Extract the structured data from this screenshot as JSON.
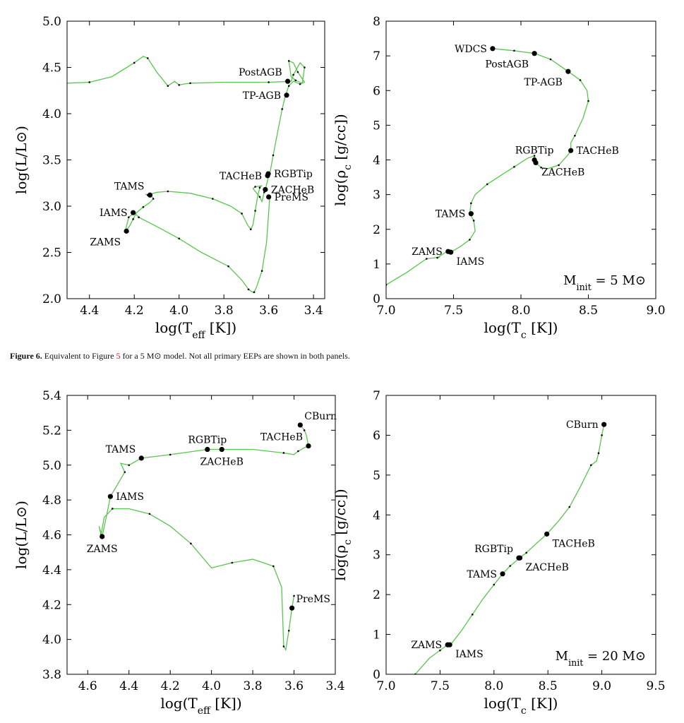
{
  "caption": {
    "figure_label": "Figure 6.",
    "text_before_ref": "Equivalent to Figure",
    "ref": "5",
    "text_after_ref": "for a 5 M⊙ model. Not all primary EEPs are shown in both panels."
  },
  "colors": {
    "track": "#59c64d",
    "point": "#000000",
    "axes": "#000000",
    "caption_ref": "#c8201e"
  },
  "chart_data": [
    {
      "id": "hr5",
      "type": "line",
      "xlabel": "log(T_eff [K])",
      "ylabel": "log(L/L⊙)",
      "xlim": [
        4.5,
        3.35
      ],
      "ylim": [
        2.0,
        5.0
      ],
      "xticks": [
        4.4,
        4.2,
        4.0,
        3.8,
        3.6,
        3.4
      ],
      "yticks": [
        2.0,
        2.5,
        3.0,
        3.5,
        4.0,
        4.5,
        5.0
      ],
      "x_tick_labels": [
        "4.4",
        "4.2",
        "4.0",
        "3.8",
        "3.6",
        "3.4"
      ],
      "y_tick_labels": [
        "2.0",
        "2.5",
        "3.0",
        "3.5",
        "4.0",
        "4.5",
        "5.0"
      ],
      "annotation": "",
      "track": [
        [
          3.595,
          3.1
        ],
        [
          3.61,
          2.6
        ],
        [
          3.63,
          2.3
        ],
        [
          3.655,
          2.12
        ],
        [
          3.665,
          2.07
        ],
        [
          3.672,
          2.07
        ],
        [
          3.69,
          2.1
        ],
        [
          3.72,
          2.2
        ],
        [
          3.78,
          2.35
        ],
        [
          3.9,
          2.5
        ],
        [
          4.0,
          2.65
        ],
        [
          4.1,
          2.78
        ],
        [
          4.18,
          2.88
        ],
        [
          4.2,
          2.93
        ],
        [
          4.225,
          2.88
        ],
        [
          4.235,
          2.78
        ],
        [
          4.24,
          2.72
        ],
        [
          4.22,
          2.79
        ],
        [
          4.205,
          2.86
        ],
        [
          4.19,
          2.93
        ],
        [
          4.16,
          2.99
        ],
        [
          4.13,
          3.04
        ],
        [
          4.115,
          3.08
        ],
        [
          4.12,
          3.1
        ],
        [
          4.135,
          3.12
        ],
        [
          4.15,
          3.13
        ],
        [
          4.14,
          3.12
        ],
        [
          4.1,
          3.15
        ],
        [
          4.05,
          3.16
        ],
        [
          3.95,
          3.14
        ],
        [
          3.85,
          3.08
        ],
        [
          3.77,
          3.0
        ],
        [
          3.72,
          2.92
        ],
        [
          3.695,
          2.8
        ],
        [
          3.68,
          2.75
        ],
        [
          3.67,
          2.8
        ],
        [
          3.66,
          2.95
        ],
        [
          3.65,
          3.1
        ],
        [
          3.64,
          3.2
        ],
        [
          3.632,
          3.22
        ],
        [
          3.66,
          3.21
        ],
        [
          3.67,
          3.19
        ],
        [
          3.64,
          3.1
        ],
        [
          3.63,
          3.05
        ],
        [
          3.62,
          3.15
        ],
        [
          3.615,
          3.18
        ],
        [
          3.6,
          3.33
        ],
        [
          3.595,
          3.35
        ],
        [
          3.58,
          3.55
        ],
        [
          3.56,
          3.8
        ],
        [
          3.54,
          4.05
        ],
        [
          3.525,
          4.2
        ],
        [
          3.51,
          4.3
        ],
        [
          3.49,
          4.35
        ],
        [
          3.46,
          4.32
        ],
        [
          3.44,
          4.34
        ],
        [
          3.47,
          4.45
        ],
        [
          3.49,
          4.55
        ],
        [
          3.51,
          4.57
        ],
        [
          3.5,
          4.4
        ],
        [
          3.48,
          4.36
        ],
        [
          3.45,
          4.33
        ],
        [
          3.44,
          4.5
        ],
        [
          3.46,
          4.55
        ],
        [
          3.49,
          4.42
        ],
        [
          3.5,
          4.35
        ],
        [
          3.6,
          4.34
        ],
        [
          3.8,
          4.34
        ],
        [
          3.95,
          4.33
        ],
        [
          3.98,
          4.32
        ],
        [
          4.0,
          4.31
        ],
        [
          4.02,
          4.35
        ],
        [
          4.05,
          4.3
        ],
        [
          4.1,
          4.45
        ],
        [
          4.14,
          4.6
        ],
        [
          4.16,
          4.62
        ],
        [
          4.2,
          4.55
        ],
        [
          4.3,
          4.4
        ],
        [
          4.4,
          4.34
        ],
        [
          4.5,
          4.33
        ]
      ],
      "points": [
        {
          "label": "ZAMS",
          "x": 4.235,
          "y": 2.73,
          "label_pos": "left-below"
        },
        {
          "label": "IAMS",
          "x": 4.205,
          "y": 2.93,
          "label_pos": "left"
        },
        {
          "label": "TAMS",
          "x": 4.13,
          "y": 3.12,
          "label_pos": "left-above"
        },
        {
          "label": "PreMS",
          "x": 3.6,
          "y": 3.1,
          "label_pos": "right"
        },
        {
          "label": "ZACHeB",
          "x": 3.615,
          "y": 3.18,
          "label_pos": "right"
        },
        {
          "label": "TACHeB",
          "x": 3.605,
          "y": 3.33,
          "label_pos": "left"
        },
        {
          "label": "RGBTip",
          "x": 3.602,
          "y": 3.35,
          "label_pos": "right"
        },
        {
          "label": "TP-AGB",
          "x": 3.52,
          "y": 4.2,
          "label_pos": "left"
        },
        {
          "label": "PostAGB",
          "x": 3.515,
          "y": 4.35,
          "label_pos": "left-above"
        }
      ]
    },
    {
      "id": "core5",
      "type": "line",
      "xlabel": "log(T_c [K])",
      "ylabel": "log(ρ_c [g/cc])",
      "xlim": [
        7.0,
        9.0
      ],
      "ylim": [
        0,
        8
      ],
      "xticks": [
        7.0,
        7.5,
        8.0,
        8.5,
        9.0
      ],
      "yticks": [
        0,
        1,
        2,
        3,
        4,
        5,
        6,
        7,
        8
      ],
      "x_tick_labels": [
        "7.0",
        "7.5",
        "8.0",
        "8.5",
        "9.0"
      ],
      "y_tick_labels": [
        "0",
        "1",
        "2",
        "3",
        "4",
        "5",
        "6",
        "7",
        "8"
      ],
      "annotation": "M_init = 5 M⊙",
      "track": [
        [
          7.0,
          0.4
        ],
        [
          7.15,
          0.75
        ],
        [
          7.3,
          1.15
        ],
        [
          7.4,
          1.2
        ],
        [
          7.38,
          1.18
        ],
        [
          7.45,
          1.36
        ],
        [
          7.48,
          1.34
        ],
        [
          7.55,
          1.5
        ],
        [
          7.62,
          1.7
        ],
        [
          7.66,
          1.95
        ],
        [
          7.65,
          2.25
        ],
        [
          7.62,
          2.45
        ],
        [
          7.63,
          2.75
        ],
        [
          7.66,
          3.0
        ],
        [
          7.75,
          3.3
        ],
        [
          7.85,
          3.55
        ],
        [
          7.95,
          3.8
        ],
        [
          8.05,
          4.05
        ],
        [
          8.1,
          4.12
        ],
        [
          8.11,
          3.92
        ],
        [
          8.15,
          3.78
        ],
        [
          8.2,
          3.75
        ],
        [
          8.28,
          3.85
        ],
        [
          8.35,
          4.15
        ],
        [
          8.37,
          4.27
        ],
        [
          8.37,
          4.5
        ],
        [
          8.4,
          4.7
        ],
        [
          8.46,
          5.2
        ],
        [
          8.5,
          5.7
        ],
        [
          8.49,
          6.0
        ],
        [
          8.44,
          6.3
        ],
        [
          8.35,
          6.55
        ],
        [
          8.22,
          6.9
        ],
        [
          8.1,
          7.07
        ],
        [
          7.95,
          7.15
        ],
        [
          7.79,
          7.21
        ]
      ],
      "points": [
        {
          "label": "ZAMS",
          "x": 7.46,
          "y": 1.36,
          "label_pos": "left"
        },
        {
          "label": "IAMS",
          "x": 7.48,
          "y": 1.34,
          "label_pos": "right-below"
        },
        {
          "label": "TAMS",
          "x": 7.63,
          "y": 2.45,
          "label_pos": "left"
        },
        {
          "label": "RGBTip",
          "x": 8.1,
          "y": 4.0,
          "label_pos": "above"
        },
        {
          "label": "ZACHeB",
          "x": 8.11,
          "y": 3.92,
          "label_pos": "right-below"
        },
        {
          "label": "TACHeB",
          "x": 8.37,
          "y": 4.27,
          "label_pos": "right"
        },
        {
          "label": "TP-AGB",
          "x": 8.35,
          "y": 6.55,
          "label_pos": "left-below"
        },
        {
          "label": "PostAGB",
          "x": 8.1,
          "y": 7.07,
          "label_pos": "left-below"
        },
        {
          "label": "WDCS",
          "x": 7.79,
          "y": 7.21,
          "label_pos": "left"
        }
      ]
    },
    {
      "id": "hr20",
      "type": "line",
      "xlabel": "log(T_eff [K])",
      "ylabel": "log(L/L⊙)",
      "xlim": [
        4.7,
        3.4
      ],
      "ylim": [
        3.8,
        5.4
      ],
      "xticks": [
        4.6,
        4.4,
        4.2,
        4.0,
        3.8,
        3.6,
        3.4
      ],
      "yticks": [
        3.8,
        4.0,
        4.2,
        4.4,
        4.6,
        4.8,
        5.0,
        5.2,
        5.4
      ],
      "x_tick_labels": [
        "4.6",
        "4.4",
        "4.2",
        "4.0",
        "3.8",
        "3.6",
        "3.4"
      ],
      "y_tick_labels": [
        "3.8",
        "4.0",
        "4.2",
        "4.4",
        "4.6",
        "4.8",
        "5.0",
        "5.2",
        "5.4"
      ],
      "annotation": "",
      "track": [
        [
          3.6,
          4.25
        ],
        [
          3.61,
          4.18
        ],
        [
          3.625,
          4.05
        ],
        [
          3.64,
          3.94
        ],
        [
          3.65,
          3.96
        ],
        [
          3.66,
          4.3
        ],
        [
          3.7,
          4.42
        ],
        [
          3.8,
          4.46
        ],
        [
          3.9,
          4.44
        ],
        [
          4.0,
          4.41
        ],
        [
          4.1,
          4.55
        ],
        [
          4.2,
          4.65
        ],
        [
          4.3,
          4.72
        ],
        [
          4.4,
          4.75
        ],
        [
          4.48,
          4.75
        ],
        [
          4.52,
          4.7
        ],
        [
          4.535,
          4.6
        ],
        [
          4.545,
          4.65
        ],
        [
          4.53,
          4.59
        ],
        [
          4.51,
          4.7
        ],
        [
          4.49,
          4.82
        ],
        [
          4.45,
          4.9
        ],
        [
          4.42,
          4.96
        ],
        [
          4.44,
          5.01
        ],
        [
          4.4,
          5.0
        ],
        [
          4.34,
          5.04
        ],
        [
          4.2,
          5.06
        ],
        [
          4.02,
          5.09
        ],
        [
          3.95,
          5.09
        ],
        [
          3.8,
          5.09
        ],
        [
          3.65,
          5.07
        ],
        [
          3.6,
          5.06
        ],
        [
          3.58,
          5.08
        ],
        [
          3.55,
          5.1
        ],
        [
          3.53,
          5.11
        ],
        [
          3.54,
          5.17
        ],
        [
          3.55,
          5.2
        ],
        [
          3.57,
          5.23
        ]
      ],
      "points": [
        {
          "label": "ZAMS",
          "x": 4.53,
          "y": 4.59,
          "label_pos": "below"
        },
        {
          "label": "IAMS",
          "x": 4.49,
          "y": 4.82,
          "label_pos": "right"
        },
        {
          "label": "TAMS",
          "x": 4.34,
          "y": 5.04,
          "label_pos": "left-above"
        },
        {
          "label": "RGBTip",
          "x": 4.02,
          "y": 5.09,
          "label_pos": "above"
        },
        {
          "label": "ZACHeB",
          "x": 3.95,
          "y": 5.09,
          "label_pos": "below"
        },
        {
          "label": "TACHeB",
          "x": 3.53,
          "y": 5.11,
          "label_pos": "left-above"
        },
        {
          "label": "CBurn",
          "x": 3.57,
          "y": 5.23,
          "label_pos": "right-above"
        },
        {
          "label": "PreMS",
          "x": 3.61,
          "y": 4.18,
          "label_pos": "right-above"
        }
      ]
    },
    {
      "id": "core20",
      "type": "line",
      "xlabel": "log(T_c [K])",
      "ylabel": "log(ρ_c [g/cc])",
      "xlim": [
        7.0,
        9.5
      ],
      "ylim": [
        0,
        7
      ],
      "xticks": [
        7.0,
        7.5,
        8.0,
        8.5,
        9.0,
        9.5
      ],
      "yticks": [
        0,
        1,
        2,
        3,
        4,
        5,
        6,
        7
      ],
      "x_tick_labels": [
        "7.0",
        "7.5",
        "8.0",
        "8.5",
        "9.0",
        "9.5"
      ],
      "y_tick_labels": [
        "0",
        "1",
        "2",
        "3",
        "4",
        "5",
        "6",
        "7"
      ],
      "annotation": "M_init = 20 M⊙",
      "track": [
        [
          7.27,
          0
        ],
        [
          7.4,
          0.4
        ],
        [
          7.5,
          0.6
        ],
        [
          7.57,
          0.74
        ],
        [
          7.6,
          0.75
        ],
        [
          7.7,
          1.1
        ],
        [
          7.8,
          1.5
        ],
        [
          7.9,
          1.9
        ],
        [
          8.0,
          2.25
        ],
        [
          8.08,
          2.52
        ],
        [
          8.15,
          2.72
        ],
        [
          8.24,
          2.92
        ],
        [
          8.3,
          3.05
        ],
        [
          8.4,
          3.3
        ],
        [
          8.49,
          3.52
        ],
        [
          8.6,
          3.85
        ],
        [
          8.7,
          4.2
        ],
        [
          8.8,
          4.7
        ],
        [
          8.9,
          5.25
        ],
        [
          8.95,
          5.35
        ],
        [
          8.97,
          5.55
        ],
        [
          8.98,
          5.7
        ],
        [
          9.0,
          6.0
        ],
        [
          9.02,
          6.27
        ]
      ],
      "points": [
        {
          "label": "ZAMS",
          "x": 7.57,
          "y": 0.74,
          "label_pos": "left"
        },
        {
          "label": "IAMS",
          "x": 7.59,
          "y": 0.74,
          "label_pos": "right-below"
        },
        {
          "label": "TAMS",
          "x": 8.08,
          "y": 2.52,
          "label_pos": "left"
        },
        {
          "label": "RGBTip",
          "x": 8.23,
          "y": 2.92,
          "label_pos": "left-above"
        },
        {
          "label": "ZACHeB",
          "x": 8.24,
          "y": 2.92,
          "label_pos": "right-below"
        },
        {
          "label": "TACHeB",
          "x": 8.49,
          "y": 3.52,
          "label_pos": "right-below"
        },
        {
          "label": "CBurn",
          "x": 9.02,
          "y": 6.27,
          "label_pos": "left"
        }
      ]
    }
  ]
}
